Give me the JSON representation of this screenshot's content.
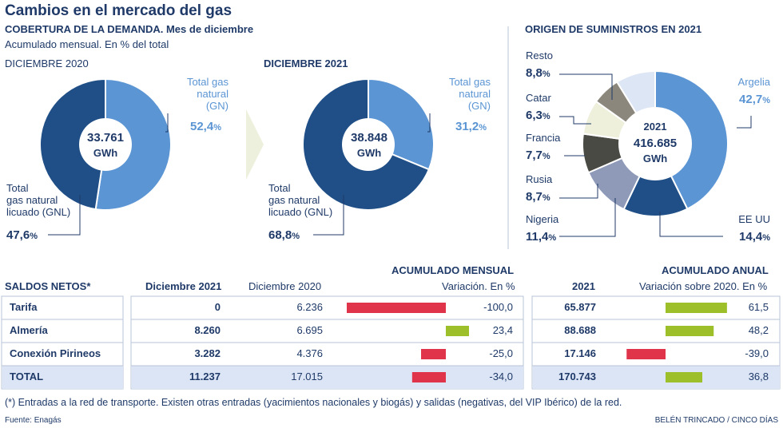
{
  "title": "Cambios en el mercado del gas",
  "demand": {
    "heading": "COBERTURA DE LA DEMANDA. Mes de diciembre",
    "subheading": "Acumulado mensual. En % del total"
  },
  "chart_data": [
    {
      "type": "pie",
      "title": "DICIEMBRE 2020",
      "center_value": "33.761",
      "center_unit": "GWh",
      "slices": [
        {
          "label": "Total gas natural (GN)",
          "value": 52.4,
          "display": "52,4",
          "color": "#5b95d3"
        },
        {
          "label": "Total gas natural licuado (GNL)",
          "value": 47.6,
          "display": "47,6",
          "color": "#1f4f86"
        }
      ]
    },
    {
      "type": "pie",
      "title": "DICIEMBRE 2021",
      "center_value": "38.848",
      "center_unit": "GWh",
      "slices": [
        {
          "label": "Total gas natural (GN)",
          "value": 31.2,
          "display": "31,2",
          "color": "#5b95d3"
        },
        {
          "label": "Total gas natural licuado (GNL)",
          "value": 68.8,
          "display": "68,8",
          "color": "#1f4f86"
        }
      ]
    },
    {
      "type": "pie",
      "title": "ORIGEN DE SUMINISTROS EN 2021",
      "center_year": "2021",
      "center_value": "416.685",
      "center_unit": "GWh",
      "slices": [
        {
          "label": "Argelia",
          "value": 42.7,
          "display": "42,7",
          "color": "#5b95d3"
        },
        {
          "label": "EE UU",
          "value": 14.4,
          "display": "14,4",
          "color": "#1f4f86"
        },
        {
          "label": "Nigeria",
          "value": 11.4,
          "display": "11,4",
          "color": "#8e9ab8"
        },
        {
          "label": "Rusia",
          "value": 8.7,
          "display": "8,7",
          "color": "#4a4a44"
        },
        {
          "label": "Francia",
          "value": 7.7,
          "display": "7,7",
          "color": "#eef0dc"
        },
        {
          "label": "Catar",
          "value": 6.3,
          "display": "6,3",
          "color": "#8b877c"
        },
        {
          "label": "Resto",
          "value": 8.8,
          "display": "8,8",
          "color": "#dde6f5"
        }
      ]
    },
    {
      "type": "table",
      "title": "SALDOS NETOS*",
      "columns": [
        "Diciembre 2021",
        "Diciembre 2020",
        "Variación. En %",
        "2021",
        "Variación sobre 2020. En %"
      ],
      "rows": [
        {
          "name": "Tarifa",
          "dec2021": "0",
          "dec2020": "6.236",
          "var_m": -100.0,
          "var_m_label": "-100,0",
          "y2021": "65.877",
          "var_a": 61.5,
          "var_a_label": "61,5"
        },
        {
          "name": "Almería",
          "dec2021": "8.260",
          "dec2020": "6.695",
          "var_m": 23.4,
          "var_m_label": "23,4",
          "y2021": "88.688",
          "var_a": 48.2,
          "var_a_label": "48,2"
        },
        {
          "name": "Conexión Pirineos",
          "dec2021": "3.282",
          "dec2020": "4.376",
          "var_m": -25.0,
          "var_m_label": "-25,0",
          "y2021": "17.146",
          "var_a": -39.0,
          "var_a_label": "-39,0"
        },
        {
          "name": "TOTAL",
          "dec2021": "11.237",
          "dec2020": "17.015",
          "var_m": -34.0,
          "var_m_label": "-34,0",
          "y2021": "170.743",
          "var_a": 36.8,
          "var_a_label": "36,8"
        }
      ]
    }
  ],
  "labels": {
    "gn": [
      "Total gas",
      "natural",
      "(GN)"
    ],
    "gnl": [
      "Total",
      "gas natural",
      "licuado (GNL)"
    ],
    "pct": "%"
  },
  "table": {
    "mensual_heading": "ACUMULADO MENSUAL",
    "anual_heading": "ACUMULADO ANUAL",
    "saldos": "SALDOS NETOS*",
    "col_dec2021": "Diciembre 2021",
    "col_dec2020": "Diciembre 2020",
    "col_var_m": "Variación. En %",
    "col_2021": "2021",
    "col_var_a": "Variación sobre 2020. En %"
  },
  "colors": {
    "negative": "#e0344b",
    "positive": "#9cbf2a",
    "total_row": "#dbe5f5"
  },
  "footnote": "(*) Entradas a la red de transporte. Existen otras entradas (yacimientos nacionales y biogás) y salidas (negativas, del VIP Ibérico) de la red.",
  "source": "Fuente: Enagás",
  "credit": "BELÉN TRINCADO / CINCO DÍAS"
}
